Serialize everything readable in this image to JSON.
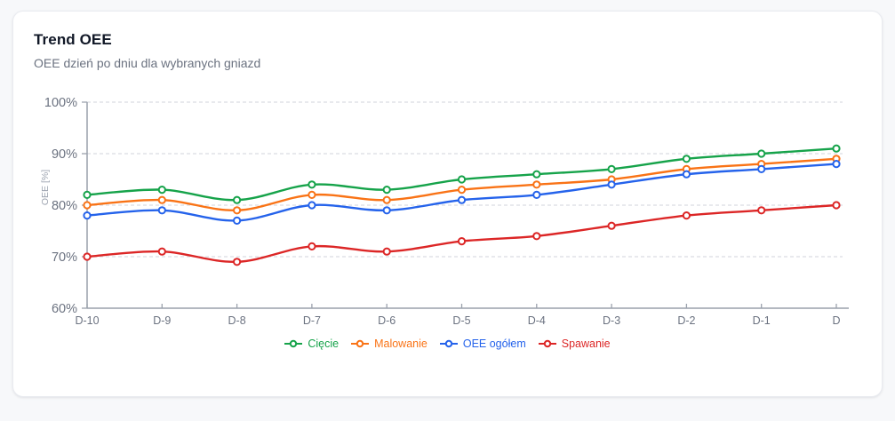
{
  "card": {
    "title": "Trend OEE",
    "subtitle": "OEE dzień po dniu dla wybranych gniazd"
  },
  "chart_data": {
    "type": "line",
    "title": "Trend OEE",
    "subtitle": "OEE dzień po dniu dla wybranych gniazd",
    "categories": [
      "D-10",
      "D-9",
      "D-8",
      "D-7",
      "D-6",
      "D-5",
      "D-4",
      "D-3",
      "D-2",
      "D-1",
      "D"
    ],
    "series": [
      {
        "name": "Cięcie",
        "color": "#16a34a",
        "values": [
          82,
          83,
          81,
          84,
          83,
          85,
          86,
          87,
          89,
          90,
          91
        ]
      },
      {
        "name": "Malowanie",
        "color": "#f97316",
        "values": [
          80,
          81,
          79,
          82,
          81,
          83,
          84,
          85,
          87,
          88,
          89
        ]
      },
      {
        "name": "OEE ogółem",
        "color": "#2563eb",
        "values": [
          78,
          79,
          77,
          80,
          79,
          81,
          82,
          84,
          86,
          87,
          88
        ]
      },
      {
        "name": "Spawanie",
        "color": "#dc2626",
        "values": [
          70,
          71,
          69,
          72,
          71,
          73,
          74,
          76,
          78,
          79,
          80
        ]
      }
    ],
    "xlabel": "",
    "ylabel": "OEE [%]",
    "ylim": [
      60,
      100
    ],
    "yticks": [
      60,
      70,
      80,
      90,
      100
    ],
    "ytick_suffix": "%",
    "grid": "horizontal-dashed",
    "legend_position": "bottom",
    "marker": "hollow-circle"
  },
  "theme": {
    "page_bg": "#f7f8fa",
    "card_bg": "#ffffff",
    "card_border": "#e9ebf0",
    "title_color": "#111827",
    "subtitle_color": "#6b7280",
    "axis_color": "#9aa1ac",
    "tick_label_color": "#6b7280",
    "grid_color": "#d9dce2",
    "axis_title_color": "#9ca3af",
    "marker_fill": "#ffffff"
  }
}
